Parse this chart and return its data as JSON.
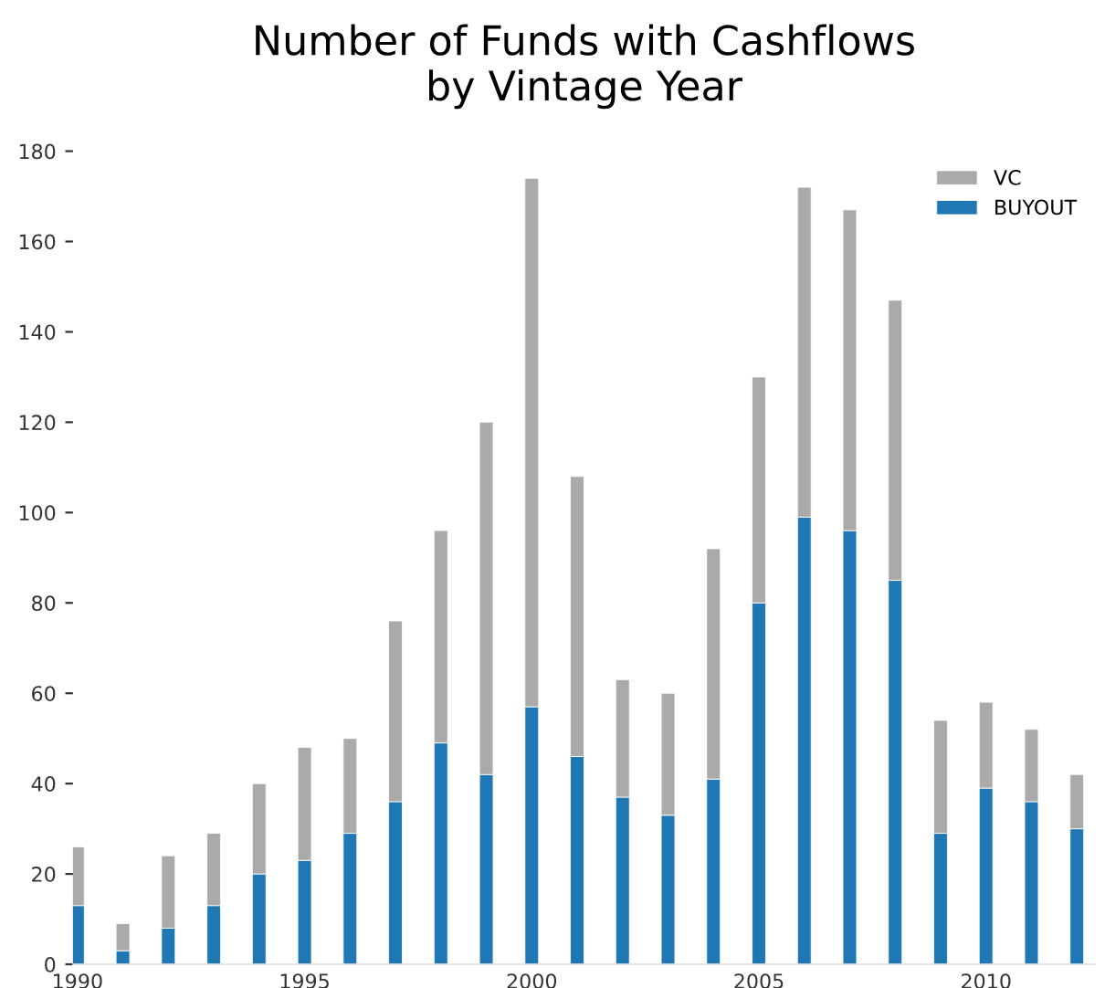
{
  "chart_data": {
    "type": "bar",
    "title": "Number of Funds with Cashflows\nby Vintage Year",
    "stacked": true,
    "x": [
      1990,
      1991,
      1992,
      1993,
      1994,
      1995,
      1996,
      1997,
      1998,
      1999,
      2000,
      2001,
      2002,
      2003,
      2004,
      2005,
      2006,
      2007,
      2008,
      2009,
      2010,
      2011,
      2012
    ],
    "series": [
      {
        "name": "BUYOUT",
        "color": "#1f77b4",
        "values": [
          13,
          3,
          8,
          13,
          20,
          23,
          29,
          36,
          49,
          42,
          57,
          46,
          37,
          33,
          41,
          80,
          99,
          96,
          85,
          29,
          39,
          36,
          30
        ]
      },
      {
        "name": "VC",
        "color": "#aaaaaa",
        "values": [
          13,
          6,
          16,
          16,
          20,
          25,
          21,
          40,
          47,
          78,
          117,
          62,
          26,
          27,
          51,
          50,
          73,
          71,
          62,
          25,
          19,
          16,
          12
        ]
      }
    ],
    "xlim": [
      1989.9,
      2012.4
    ],
    "xticks": [
      1990,
      1995,
      2000,
      2005,
      2010
    ],
    "ylim": [
      0,
      180
    ],
    "yticks": [
      0,
      20,
      40,
      60,
      80,
      100,
      120,
      140,
      160,
      180
    ],
    "grid": false,
    "legend": "top right"
  }
}
